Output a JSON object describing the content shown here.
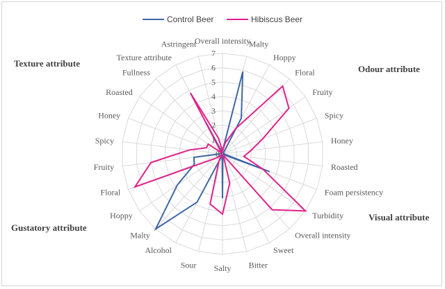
{
  "chart_data": {
    "type": "radar",
    "title": "",
    "rmax": 7,
    "ticks": [
      1,
      2,
      3,
      4,
      5,
      6,
      7
    ],
    "axes": [
      "Overall intensity",
      "Malty",
      "Hoppy",
      "Floral",
      "Fruity",
      "Spicy",
      "Honey",
      "Roasted",
      "Foam persistency",
      "Turbidity",
      "Overall intensity",
      "Sweet",
      "Bitter",
      "Salty",
      "Sour",
      "Alcohol",
      "Malty",
      "Hoppy",
      "Floral",
      "Fruity",
      "Spicy",
      "Honey",
      "Roasted",
      "Fullness",
      "Texture attribute",
      "Astringent"
    ],
    "series": [
      {
        "name": "Control Beer",
        "color": "#3f67a6",
        "values": [
          0.2,
          5.9,
          2.8,
          0.1,
          0.1,
          0.1,
          0.1,
          0.1,
          3.5,
          0.1,
          0.1,
          0.1,
          0.1,
          3.1,
          0.1,
          3.8,
          7.0,
          3.8,
          2.1,
          2.0,
          0.1,
          0.1,
          0.1,
          0.1,
          2.5,
          0.1
        ]
      },
      {
        "name": "Hibiscus Beer",
        "color": "#e0218a",
        "values": [
          0.2,
          0.8,
          2.0,
          6.3,
          5.6,
          3.0,
          2.0,
          1.5,
          3.0,
          7.0,
          5.2,
          0.1,
          2.1,
          4.2,
          3.6,
          0.5,
          0.1,
          0.5,
          6.5,
          5.0,
          2.3,
          1.2,
          1.2,
          0.1,
          4.8,
          1.1
        ]
      }
    ],
    "groups": [
      {
        "label": "Texture attribute"
      },
      {
        "label": "Odour attribute"
      },
      {
        "label": "Visual attribute"
      },
      {
        "label": "Gustatory attribute"
      }
    ]
  }
}
